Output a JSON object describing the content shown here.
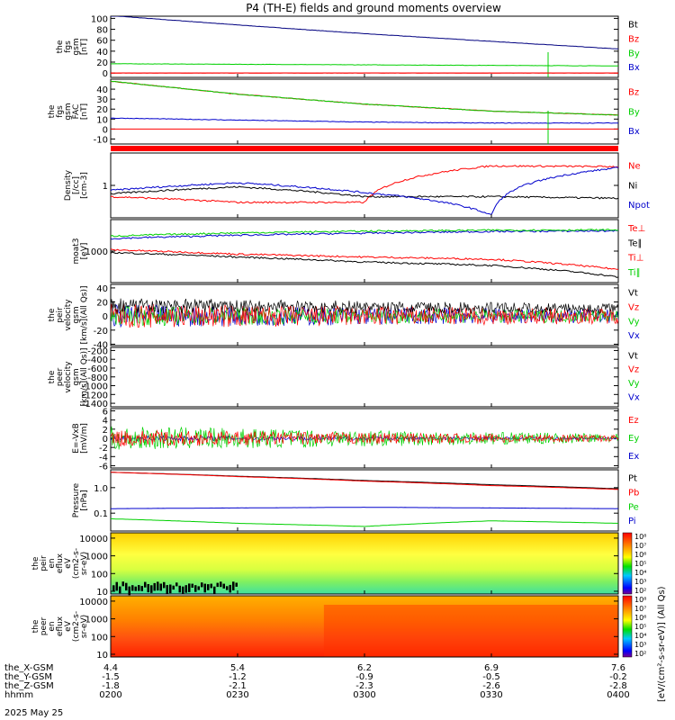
{
  "title": "P4 (TH-E) fields and ground moments overview",
  "date_label": "2025 May 25",
  "colors": {
    "black": "#000000",
    "red": "#ff0000",
    "green": "#00d000",
    "blue": "#0000cc",
    "navy": "#000080"
  },
  "panels": [
    {
      "id": "fgs_gsm",
      "ylabel": [
        "the",
        "fgs",
        "gsm",
        "[nT]"
      ],
      "ticks": [
        "100",
        "80",
        "60",
        "40",
        "20",
        "0"
      ],
      "tick_vals": [
        100,
        80,
        60,
        40,
        20,
        0
      ],
      "ylim": [
        -8,
        104
      ],
      "legend": [
        {
          "text": "Bt",
          "color": "black"
        },
        {
          "text": "Bz",
          "color": "red"
        },
        {
          "text": "By",
          "color": "green"
        },
        {
          "text": "Bx",
          "color": "blue"
        }
      ]
    },
    {
      "id": "fgs_gse",
      "ylabel": [
        "the",
        "fgs",
        "gsm",
        "FAC",
        "[nT]"
      ],
      "ticks": [
        "40",
        "30",
        "20",
        "10",
        "0",
        "-10"
      ],
      "tick_vals": [
        40,
        30,
        20,
        10,
        0,
        -10
      ],
      "ylim": [
        -15,
        50
      ],
      "legend": [
        {
          "text": "Bz",
          "color": "red"
        },
        {
          "text": "By",
          "color": "green"
        },
        {
          "text": "Bx",
          "color": "blue"
        }
      ]
    },
    {
      "id": "density",
      "ylabel": [
        "Density",
        "[/cc]",
        "[cm-3]"
      ],
      "ticks": [
        "1"
      ],
      "tick_vals": [
        1
      ],
      "ylim": [
        0.1,
        10
      ],
      "log": true,
      "legend": [
        {
          "text": "Ne",
          "color": "red"
        },
        {
          "text": "Ni",
          "color": "black"
        },
        {
          "text": "Npot",
          "color": "blue"
        }
      ]
    },
    {
      "id": "temperature",
      "ylabel": [
        "moat3",
        "[eV]"
      ],
      "ticks": [
        "1000"
      ],
      "tick_vals": [
        1000
      ],
      "ylim": [
        100,
        10000
      ],
      "log": true,
      "legend": [
        {
          "text": "Te⊥",
          "color": "red"
        },
        {
          "text": "Te∥",
          "color": "black"
        },
        {
          "text": "Ti⊥",
          "color": "red"
        },
        {
          "text": "Ti∥",
          "color": "green"
        }
      ]
    },
    {
      "id": "peir_velocity",
      "ylabel": [
        "the",
        "peir",
        "velocity",
        "gsm",
        "[km/s](All Qs)]"
      ],
      "ticks": [
        "40",
        "20",
        "0",
        "-20",
        "-40"
      ],
      "tick_vals": [
        40,
        20,
        0,
        -20,
        -40
      ],
      "ylim": [
        -42,
        45
      ],
      "legend": [
        {
          "text": "Vt",
          "color": "black"
        },
        {
          "text": "Vz",
          "color": "red"
        },
        {
          "text": "Vy",
          "color": "green"
        },
        {
          "text": "Vx",
          "color": "blue"
        }
      ]
    },
    {
      "id": "peer_velocity",
      "ylabel": [
        "the",
        "peer",
        "velocity",
        "gsm",
        "[km/s](All Qs)]"
      ],
      "ticks": [
        "-200",
        "-400",
        "-600",
        "-800",
        "-1000",
        "-1200",
        "-1400"
      ],
      "tick_vals": [
        -200,
        -400,
        -600,
        -800,
        -1000,
        -1200,
        -1400
      ],
      "ylim": [
        -1480,
        -130
      ],
      "legend": [
        {
          "text": "Vt",
          "color": "black"
        },
        {
          "text": "Vz",
          "color": "red"
        },
        {
          "text": "Vy",
          "color": "green"
        },
        {
          "text": "Vx",
          "color": "blue"
        }
      ]
    },
    {
      "id": "efield",
      "ylabel": [
        "E=-VxB",
        "[mV/m]"
      ],
      "ticks": [
        "6",
        "4",
        "2",
        "0",
        "-2",
        "-4",
        "-6"
      ],
      "tick_vals": [
        6,
        4,
        2,
        0,
        -2,
        -4,
        -6
      ],
      "ylim": [
        -6.5,
        6.5
      ],
      "legend": [
        {
          "text": "Ez",
          "color": "red"
        },
        {
          "text": "Ey",
          "color": "green"
        },
        {
          "text": "Ex",
          "color": "blue"
        }
      ]
    },
    {
      "id": "pressure",
      "ylabel": [
        "Pressure",
        "[nPa]"
      ],
      "ticks": [
        "1.0",
        "0.1"
      ],
      "tick_vals": [
        1,
        0.1
      ],
      "ylim": [
        0.02,
        5
      ],
      "log": true,
      "legend": [
        {
          "text": "Pt",
          "color": "black"
        },
        {
          "text": "Pb",
          "color": "red"
        },
        {
          "text": "Pe",
          "color": "green"
        },
        {
          "text": "Pi",
          "color": "blue"
        }
      ]
    },
    {
      "id": "peir_eflux",
      "ylabel": [
        "the",
        "peir",
        "en",
        "eflux",
        "eV",
        "(cm2-s-",
        "sr-eV)"
      ],
      "ticks": [
        "10000",
        "1000",
        "100",
        "10"
      ],
      "tick_vals": [
        10000,
        1000,
        100,
        10
      ],
      "ylim": [
        7,
        20000
      ],
      "log": true,
      "spectrogram": true
    },
    {
      "id": "peer_eflux",
      "ylabel": [
        "the",
        "peer",
        "en",
        "eflux",
        "eV",
        "(cm2-s-",
        "sr-eV)"
      ],
      "ticks": [
        "10000",
        "1000",
        "100",
        "10"
      ],
      "tick_vals": [
        10000,
        1000,
        100,
        10
      ],
      "ylim": [
        7,
        20000
      ],
      "log": true,
      "spectrogram": true
    }
  ],
  "colorbar": {
    "ticks": [
      "10⁸",
      "10⁷",
      "10⁶",
      "10⁵",
      "10⁴",
      "10³",
      "10²"
    ],
    "label": "[eV/(cm²-s-sr-eV)] (All Qs)"
  },
  "x_axis": {
    "rows": [
      {
        "label": "the_X-GSM",
        "values": [
          "4.4",
          "5.4",
          "6.2",
          "6.9",
          "7.6"
        ]
      },
      {
        "label": "the_Y-GSM",
        "values": [
          "-1.5",
          "-1.2",
          "-0.9",
          "-0.5",
          "-0.2"
        ]
      },
      {
        "label": "the_Z-GSM",
        "values": [
          "-1.8",
          "-2.1",
          "-2.3",
          "-2.6",
          "-2.8"
        ]
      },
      {
        "label": "hhmm",
        "values": [
          "0200",
          "0230",
          "0300",
          "0330",
          "0400"
        ]
      }
    ]
  },
  "chart_data": {
    "type": "line",
    "title": "P4 (TH-E) fields and ground moments overview",
    "x": [
      "0200",
      "0230",
      "0300",
      "0330",
      "0400"
    ],
    "xlabel": "hhmm",
    "series": [
      {
        "name": "Bt",
        "panel": "fgs_gsm",
        "values": [
          105,
          88,
          72,
          58,
          44
        ]
      },
      {
        "name": "Bz",
        "panel": "fgs_gsm",
        "values": [
          0,
          0,
          0,
          0,
          0
        ]
      },
      {
        "name": "By",
        "panel": "fgs_gsm",
        "values": [
          17,
          16,
          15,
          14,
          13
        ]
      },
      {
        "name": "Bz",
        "panel": "fgs_gse",
        "values": [
          48,
          35,
          25,
          18,
          14
        ]
      },
      {
        "name": "By",
        "panel": "fgs_gse",
        "values": [
          48,
          35,
          25,
          18,
          14
        ]
      },
      {
        "name": "Bx",
        "panel": "fgs_gse",
        "values": [
          11,
          9,
          7,
          6,
          6
        ]
      },
      {
        "name": "Ne",
        "panel": "density",
        "values": [
          0.45,
          0.3,
          0.3,
          4.0,
          3.8
        ]
      },
      {
        "name": "Ni",
        "panel": "density",
        "values": [
          0.55,
          0.9,
          0.45,
          0.45,
          0.4
        ]
      },
      {
        "name": "Npot",
        "panel": "density",
        "values": [
          0.7,
          1.2,
          0.6,
          0.12,
          3.5
        ]
      },
      {
        "name": "Te∥",
        "panel": "temperature",
        "values": [
          900,
          650,
          450,
          350,
          150
        ]
      },
      {
        "name": "Ti⊥",
        "panel": "temperature",
        "values": [
          1100,
          800,
          650,
          550,
          260
        ]
      },
      {
        "name": "Ti∥",
        "panel": "temperature",
        "values": [
          2500,
          3200,
          3700,
          4200,
          4400
        ]
      },
      {
        "name": "Te⊥",
        "panel": "temperature",
        "values": [
          3000,
          3800,
          4300,
          4600,
          4700
        ]
      },
      {
        "name": "Pt",
        "panel": "pressure",
        "values": [
          4.0,
          2.8,
          1.9,
          1.3,
          0.9
        ]
      },
      {
        "name": "Pb",
        "panel": "pressure",
        "values": [
          4.0,
          2.7,
          1.8,
          1.2,
          0.85
        ]
      },
      {
        "name": "Pe",
        "panel": "pressure",
        "values": [
          0.15,
          0.16,
          0.17,
          0.16,
          0.15
        ]
      },
      {
        "name": "Pi",
        "panel": "pressure",
        "values": [
          0.06,
          0.04,
          0.03,
          0.05,
          0.04
        ]
      }
    ],
    "grid": false,
    "legend_position": "right"
  }
}
